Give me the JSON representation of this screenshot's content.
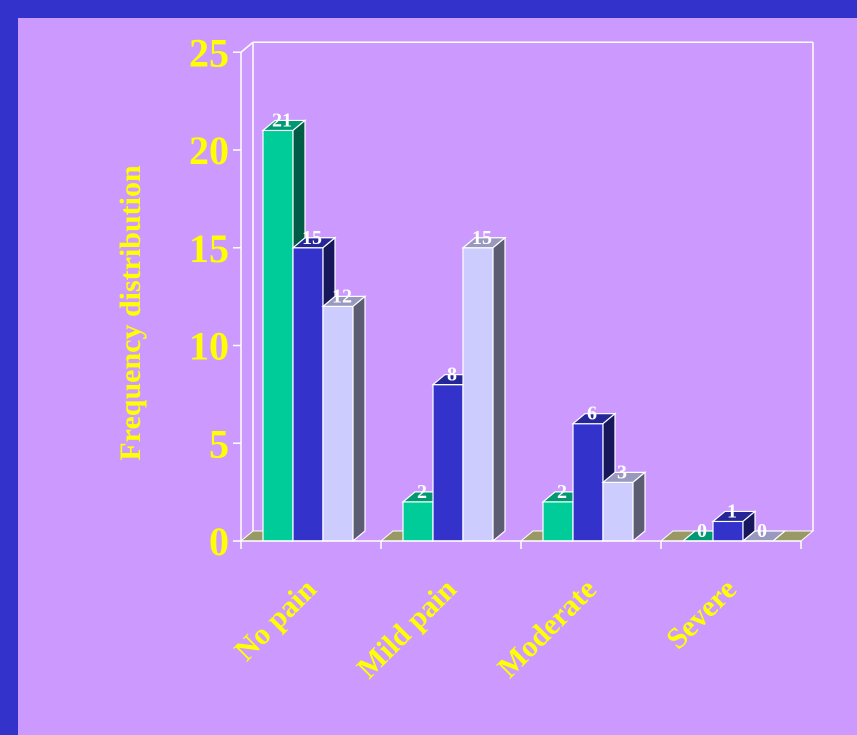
{
  "chart_data": {
    "type": "bar",
    "title": "",
    "ylabel": "Frequency distribution",
    "xlabel": "",
    "ylim": [
      0,
      25
    ],
    "yticks": [
      0,
      5,
      10,
      15,
      20,
      25
    ],
    "categories": [
      "No pain",
      "Mild pain",
      "Moderate",
      "Severe"
    ],
    "series": [
      {
        "color": "#00cc99",
        "values": [
          21,
          2,
          2,
          0
        ]
      },
      {
        "color": "#3333cc",
        "values": [
          15,
          8,
          6,
          1
        ]
      },
      {
        "color": "#ccccff",
        "values": [
          12,
          15,
          3,
          0
        ]
      }
    ],
    "grid": false,
    "legend": "none",
    "style": "3d-bars",
    "colors": {
      "background": "#cc99ff",
      "border": "#3333cc",
      "text": "#ffff00",
      "data_label": "#ffffff"
    }
  }
}
